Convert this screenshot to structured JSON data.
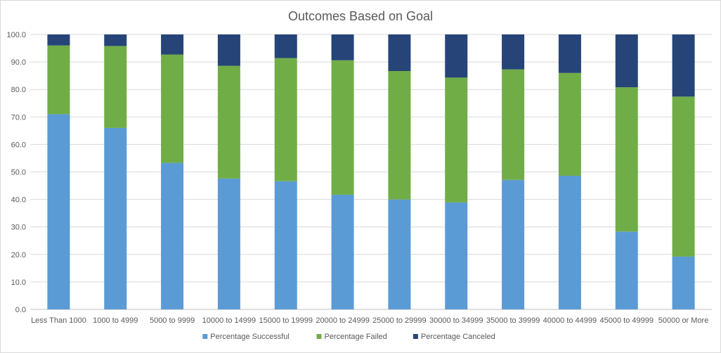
{
  "chart_data": {
    "type": "bar",
    "stacked": true,
    "title": "Outcomes Based on Goal",
    "xlabel": "",
    "ylabel": "",
    "ylim": [
      0,
      100
    ],
    "yticks": [
      "0.0",
      "10.0",
      "20.0",
      "30.0",
      "40.0",
      "50.0",
      "60.0",
      "70.0",
      "80.0",
      "90.0",
      "100.0"
    ],
    "grid": true,
    "legend": "bottom",
    "categories": [
      "Less Than 1000",
      "1000 to 4999",
      "5000 to 9999",
      "10000 to 14999",
      "15000 to 19999",
      "20000 to 24999",
      "25000 to 29999",
      "30000 to 34999",
      "35000 to 39999",
      "40000 to 44999",
      "45000 to 49999",
      "50000 or More"
    ],
    "series": [
      {
        "name": "Percentage Successful",
        "color": "#5b9bd5",
        "values": [
          71.0,
          66.0,
          53.3,
          47.6,
          46.6,
          41.7,
          40.0,
          38.9,
          47.1,
          48.6,
          28.3,
          19.2
        ]
      },
      {
        "name": "Percentage Failed",
        "color": "#70ad47",
        "values": [
          25.0,
          29.8,
          39.4,
          41.0,
          44.8,
          48.9,
          46.7,
          45.4,
          40.2,
          37.4,
          52.5,
          58.2
        ]
      },
      {
        "name": "Percentage Canceled",
        "color": "#264478",
        "values": [
          4.0,
          4.2,
          7.3,
          11.4,
          8.6,
          9.4,
          13.3,
          15.7,
          12.7,
          14.0,
          19.2,
          22.6
        ]
      }
    ]
  }
}
